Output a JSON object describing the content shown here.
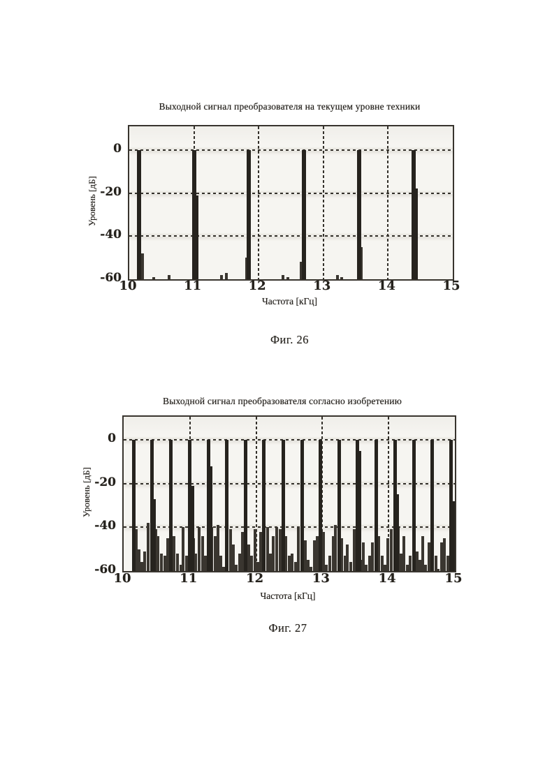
{
  "page": {
    "kind": "scanned patent figures page",
    "language": "ru"
  },
  "colors": {
    "page_background": "#ffffff",
    "plot_background": "#f6f5f1",
    "bar_main": "#26231e",
    "bar_minor": "#3a3630",
    "axis_border": "#38342e",
    "grid": "#33302a",
    "text": "#1d1b18"
  },
  "figures": [
    {
      "title": "Выходной сигнал преобразователя на текущем уровне техники",
      "caption": "Фиг. 26",
      "chart_data": {
        "type": "bar",
        "title": "Выходной сигнал преобразователя на текущем уровне техники",
        "xlabel": "Частота [кГц]",
        "ylabel": "Уровень [дБ]",
        "xlim": [
          10,
          15
        ],
        "ylim": [
          -60,
          11
        ],
        "xticks": [
          10,
          11,
          12,
          13,
          14,
          15
        ],
        "yticks": [
          0,
          -20,
          -40,
          -60
        ],
        "x_gridlines": [
          11,
          12,
          13,
          14
        ],
        "y_gridlines": [
          0,
          -20,
          -40
        ],
        "grid_style": "dashed",
        "main_peak_freqs_khz": [
          10.15,
          11.0,
          11.85,
          12.7,
          13.55,
          14.4
        ],
        "main_peak_level_db": 0,
        "bars": [
          [
            10.15,
            0
          ],
          [
            10.21,
            -48
          ],
          [
            10.38,
            -59
          ],
          [
            10.62,
            -58
          ],
          [
            11.0,
            0
          ],
          [
            11.04,
            -21
          ],
          [
            11.43,
            -58
          ],
          [
            11.5,
            -57
          ],
          [
            11.81,
            -50
          ],
          [
            11.85,
            0
          ],
          [
            12.38,
            -58
          ],
          [
            12.45,
            -59
          ],
          [
            12.66,
            -52
          ],
          [
            12.7,
            0
          ],
          [
            13.22,
            -58
          ],
          [
            13.28,
            -59
          ],
          [
            13.55,
            0
          ],
          [
            13.58,
            -45
          ],
          [
            14.4,
            0
          ],
          [
            14.43,
            -18
          ]
        ]
      }
    },
    {
      "title": "Выходной сигнал преобразователя согласно изобретению",
      "caption": "Фиг. 27",
      "chart_data": {
        "type": "bar",
        "title": "Выходной сигнал преобразователя согласно изобретению",
        "xlabel": "Частота [кГц]",
        "ylabel": "Уровень [дБ]",
        "xlim": [
          10,
          15
        ],
        "ylim": [
          -60,
          10.5
        ],
        "xticks": [
          10,
          11,
          12,
          13,
          14,
          15
        ],
        "yticks": [
          0,
          -20,
          -40,
          -60
        ],
        "x_gridlines": [
          11,
          12,
          13,
          14
        ],
        "y_gridlines": [
          0,
          -20,
          -40
        ],
        "grid_style": "dashed",
        "main_peak_freqs_khz": [
          10.15,
          10.43,
          10.71,
          11.0,
          11.28,
          11.56,
          11.84,
          12.12,
          12.41,
          12.69,
          12.97,
          13.25,
          13.53,
          13.81,
          14.1,
          14.38,
          14.66,
          14.94
        ],
        "main_peak_level_db": 0,
        "bars": [
          [
            10.15,
            0
          ],
          [
            10.19,
            -41
          ],
          [
            10.23,
            -50
          ],
          [
            10.27,
            -56
          ],
          [
            10.32,
            -51
          ],
          [
            10.37,
            -38
          ],
          [
            10.43,
            0
          ],
          [
            10.46,
            -27
          ],
          [
            10.48,
            -41
          ],
          [
            10.52,
            -44
          ],
          [
            10.57,
            -52
          ],
          [
            10.62,
            -53
          ],
          [
            10.66,
            -45
          ],
          [
            10.71,
            0
          ],
          [
            10.76,
            -44
          ],
          [
            10.81,
            -52
          ],
          [
            10.86,
            -57
          ],
          [
            10.9,
            -40
          ],
          [
            10.95,
            -53
          ],
          [
            11.0,
            0
          ],
          [
            11.04,
            -21
          ],
          [
            11.06,
            -45
          ],
          [
            11.09,
            -52
          ],
          [
            11.14,
            -40
          ],
          [
            11.19,
            -44
          ],
          [
            11.23,
            -53
          ],
          [
            11.28,
            0
          ],
          [
            11.31,
            -12
          ],
          [
            11.33,
            -40
          ],
          [
            11.38,
            -44
          ],
          [
            11.42,
            -39
          ],
          [
            11.47,
            -53
          ],
          [
            11.51,
            -58
          ],
          [
            11.56,
            0
          ],
          [
            11.61,
            -41
          ],
          [
            11.66,
            -48
          ],
          [
            11.7,
            -57
          ],
          [
            11.75,
            -52
          ],
          [
            11.79,
            -42
          ],
          [
            11.84,
            0
          ],
          [
            11.89,
            -48
          ],
          [
            11.93,
            -53
          ],
          [
            11.98,
            -41
          ],
          [
            12.03,
            -56
          ],
          [
            12.07,
            -42
          ],
          [
            12.12,
            0
          ],
          [
            12.17,
            -40
          ],
          [
            12.21,
            -52
          ],
          [
            12.26,
            -44
          ],
          [
            12.31,
            -40
          ],
          [
            12.36,
            -41
          ],
          [
            12.41,
            0
          ],
          [
            12.45,
            -44
          ],
          [
            12.5,
            -53
          ],
          [
            12.54,
            -52
          ],
          [
            12.59,
            -56
          ],
          [
            12.64,
            -40
          ],
          [
            12.69,
            0
          ],
          [
            12.74,
            -46
          ],
          [
            12.78,
            -55
          ],
          [
            12.83,
            -58
          ],
          [
            12.88,
            -46
          ],
          [
            12.92,
            -44
          ],
          [
            12.97,
            0
          ],
          [
            13.02,
            -42
          ],
          [
            13.06,
            -57
          ],
          [
            13.11,
            -53
          ],
          [
            13.16,
            -44
          ],
          [
            13.2,
            -39
          ],
          [
            13.25,
            0
          ],
          [
            13.29,
            -45
          ],
          [
            13.34,
            -53
          ],
          [
            13.38,
            -48
          ],
          [
            13.43,
            -56
          ],
          [
            13.48,
            -41
          ],
          [
            13.53,
            0
          ],
          [
            13.56,
            -5
          ],
          [
            13.58,
            -55
          ],
          [
            13.62,
            -47
          ],
          [
            13.66,
            -57
          ],
          [
            13.71,
            -53
          ],
          [
            13.76,
            -47
          ],
          [
            13.81,
            0
          ],
          [
            13.85,
            -44
          ],
          [
            13.9,
            -53
          ],
          [
            13.94,
            -57
          ],
          [
            13.99,
            -45
          ],
          [
            14.04,
            -41
          ],
          [
            14.1,
            0
          ],
          [
            14.13,
            -25
          ],
          [
            14.15,
            -40
          ],
          [
            14.19,
            -52
          ],
          [
            14.23,
            -44
          ],
          [
            14.28,
            -57
          ],
          [
            14.33,
            -53
          ],
          [
            14.38,
            0
          ],
          [
            14.43,
            -51
          ],
          [
            14.47,
            -55
          ],
          [
            14.52,
            -44
          ],
          [
            14.56,
            -57
          ],
          [
            14.61,
            -47
          ],
          [
            14.66,
            0
          ],
          [
            14.71,
            -53
          ],
          [
            14.75,
            -59
          ],
          [
            14.8,
            -47
          ],
          [
            14.84,
            -45
          ],
          [
            14.89,
            -53
          ],
          [
            14.94,
            0
          ],
          [
            14.97,
            -28
          ]
        ]
      }
    }
  ]
}
